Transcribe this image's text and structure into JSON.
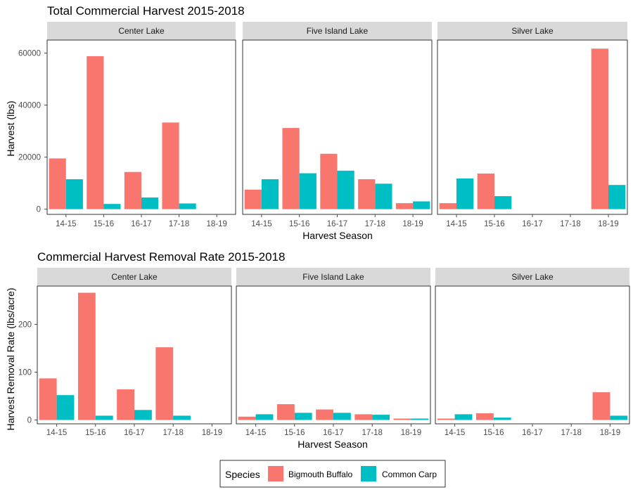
{
  "colors": {
    "bigmouth_buffalo": "#F8766D",
    "common_carp": "#00BFC4",
    "strip_bg": "#D9D9D9",
    "panel_border": "#333333",
    "tick": "#4D4D4D"
  },
  "legend": {
    "title": "Species",
    "position": "bottom",
    "entries": [
      "Bigmouth Buffalo",
      "Common Carp"
    ]
  },
  "chart_data": [
    {
      "type": "bar",
      "title": "Total Commercial Harvest 2015-2018",
      "xlabel": "Harvest Season",
      "ylabel": "Harvest (lbs)",
      "ylim": [
        -2000,
        65000
      ],
      "yticks": [
        0,
        20000,
        40000,
        60000
      ],
      "ytick_labels": [
        "0",
        "20000",
        "40000",
        "60000"
      ],
      "categories": [
        "14-15",
        "15-16",
        "16-17",
        "17-18",
        "18-19"
      ],
      "facets": [
        {
          "name": "Center Lake",
          "series": [
            {
              "name": "Bigmouth Buffalo",
              "values": [
                19500,
                58800,
                14300,
                33300,
                null
              ]
            },
            {
              "name": "Common Carp",
              "values": [
                11500,
                2000,
                4500,
                2200,
                null
              ]
            }
          ]
        },
        {
          "name": "Five Island Lake",
          "series": [
            {
              "name": "Bigmouth Buffalo",
              "values": [
                7500,
                31200,
                21300,
                11500,
                2300
              ]
            },
            {
              "name": "Common Carp",
              "values": [
                11500,
                13800,
                14800,
                9800,
                3000
              ]
            }
          ]
        },
        {
          "name": "Silver Lake",
          "series": [
            {
              "name": "Bigmouth Buffalo",
              "values": [
                2300,
                13700,
                null,
                null,
                61700
              ]
            },
            {
              "name": "Common Carp",
              "values": [
                11800,
                5000,
                null,
                null,
                9300
              ]
            }
          ]
        }
      ]
    },
    {
      "type": "bar",
      "title": "Commercial Harvest Removal Rate 2015-2018",
      "xlabel": "Harvest Season",
      "ylabel": "Harvest Removal Rate (lbs/acre)",
      "ylim": [
        -8,
        280
      ],
      "yticks": [
        0,
        100,
        200
      ],
      "ytick_labels": [
        "0",
        "100",
        "200"
      ],
      "categories": [
        "14-15",
        "15-16",
        "16-17",
        "17-18",
        "18-19"
      ],
      "facets": [
        {
          "name": "Center Lake",
          "series": [
            {
              "name": "Bigmouth Buffalo",
              "values": [
                87,
                266,
                64,
                152,
                null
              ]
            },
            {
              "name": "Common Carp",
              "values": [
                52,
                9,
                21,
                9,
                null
              ]
            }
          ]
        },
        {
          "name": "Five Island Lake",
          "series": [
            {
              "name": "Bigmouth Buffalo",
              "values": [
                7,
                33,
                22,
                12,
                3
              ]
            },
            {
              "name": "Common Carp",
              "values": [
                12,
                15,
                15,
                11,
                3
              ]
            }
          ]
        },
        {
          "name": "Silver Lake",
          "series": [
            {
              "name": "Bigmouth Buffalo",
              "values": [
                3,
                14,
                null,
                null,
                58
              ]
            },
            {
              "name": "Common Carp",
              "values": [
                12,
                5,
                null,
                null,
                9
              ]
            }
          ]
        }
      ]
    }
  ]
}
